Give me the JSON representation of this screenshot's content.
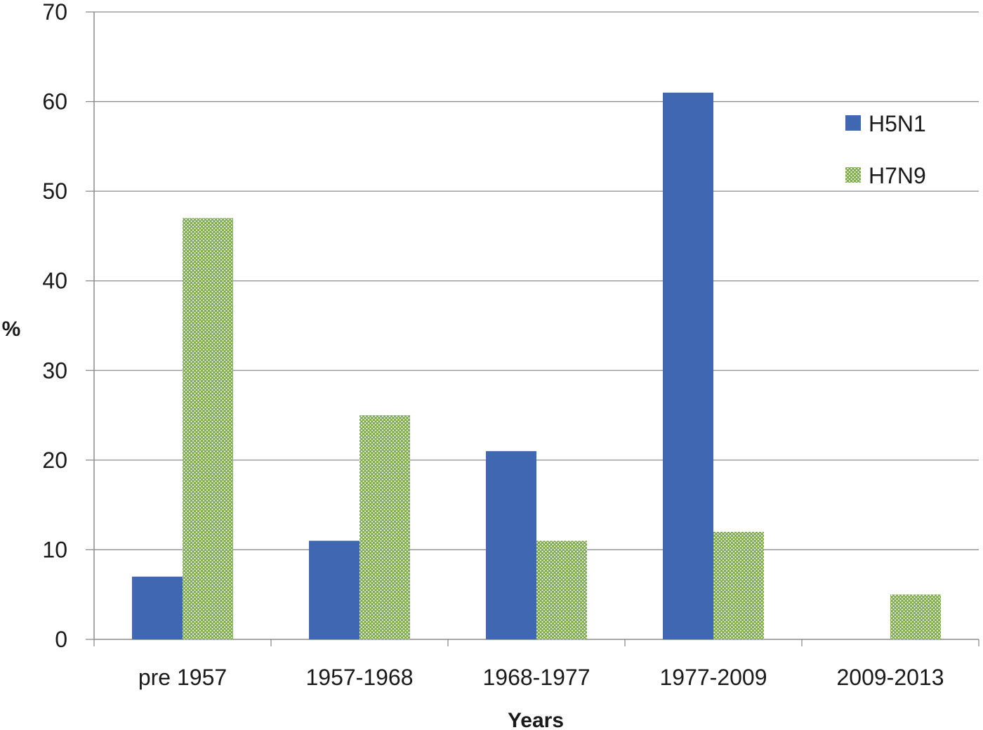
{
  "chart_data": {
    "type": "bar",
    "categories": [
      "pre 1957",
      "1957-1968",
      "1968-1977",
      "1977-2009",
      "2009-2013"
    ],
    "series": [
      {
        "name": "H5N1",
        "values": [
          7,
          11,
          21,
          61,
          0
        ],
        "color": "#4068B2",
        "fill": "solid"
      },
      {
        "name": "H7N9",
        "values": [
          47,
          25,
          11,
          12,
          5
        ],
        "color": "#77A844",
        "fill": "crosshatch"
      }
    ],
    "title": "",
    "xlabel": "Years",
    "ylabel": "%",
    "ylim": [
      0,
      70
    ],
    "yticks": [
      0,
      10,
      20,
      30,
      40,
      50,
      60,
      70
    ],
    "grid": true,
    "legend_position": "top-right"
  }
}
